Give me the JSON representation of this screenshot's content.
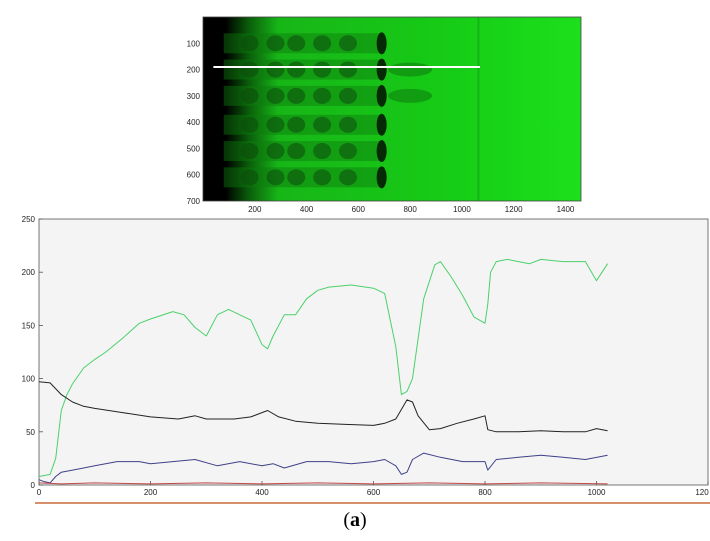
{
  "figure": {
    "caption_open": "(",
    "caption_letter": "a",
    "caption_close": ")"
  },
  "chart_data": [
    {
      "type": "heatmap",
      "description_role": "green gel-lane image with a white horizontal scan line at y ≈ 190",
      "xlim": [
        0,
        1460
      ],
      "ylim": [
        0,
        700
      ],
      "x_ticks": [
        "200",
        "400",
        "600",
        "800",
        "1000",
        "1200",
        "1400"
      ],
      "y_ticks": [
        "100",
        "200",
        "300",
        "400",
        "500",
        "600",
        "700"
      ],
      "scan_line": {
        "y": 190,
        "x_start": 40,
        "x_end": 1070
      },
      "colors": {
        "background": "#19e019",
        "bands": "#0d4d0d",
        "scan_line": "#ffffff"
      }
    },
    {
      "type": "line",
      "xlim": [
        0,
        1200
      ],
      "ylim": [
        0,
        250
      ],
      "x_ticks": [
        "0",
        "200",
        "400",
        "600",
        "800",
        "1000",
        "120"
      ],
      "y_ticks": [
        "0",
        "50",
        "100",
        "150",
        "200",
        "250"
      ],
      "grid": false,
      "series": [
        {
          "color": "#4cd06a",
          "x": [
            0,
            20,
            30,
            40,
            50,
            60,
            80,
            100,
            120,
            150,
            180,
            200,
            240,
            260,
            280,
            300,
            320,
            340,
            360,
            380,
            400,
            410,
            420,
            440,
            460,
            480,
            500,
            520,
            560,
            600,
            620,
            640,
            650,
            660,
            670,
            690,
            710,
            720,
            740,
            760,
            780,
            800,
            805,
            810,
            820,
            840,
            860,
            880,
            900,
            940,
            980,
            1000,
            1020
          ],
          "y": [
            8,
            10,
            25,
            70,
            85,
            95,
            110,
            118,
            125,
            138,
            152,
            156,
            163,
            160,
            148,
            140,
            160,
            165,
            160,
            155,
            132,
            128,
            140,
            160,
            160,
            175,
            183,
            186,
            188,
            185,
            180,
            130,
            85,
            88,
            100,
            175,
            207,
            210,
            195,
            178,
            158,
            152,
            170,
            200,
            210,
            212,
            210,
            208,
            212,
            210,
            210,
            192,
            208
          ]
        },
        {
          "color": "#222222",
          "x": [
            0,
            20,
            40,
            60,
            80,
            100,
            150,
            200,
            250,
            280,
            300,
            350,
            380,
            410,
            430,
            460,
            500,
            550,
            600,
            620,
            640,
            660,
            670,
            680,
            700,
            720,
            750,
            780,
            800,
            805,
            820,
            860,
            900,
            940,
            980,
            1000,
            1020
          ],
          "y": [
            97,
            96,
            85,
            78,
            74,
            72,
            68,
            64,
            62,
            65,
            62,
            62,
            64,
            70,
            64,
            60,
            58,
            57,
            56,
            58,
            62,
            80,
            78,
            65,
            52,
            53,
            58,
            62,
            65,
            52,
            50,
            50,
            51,
            50,
            50,
            53,
            51
          ]
        },
        {
          "color": "#40408a",
          "x": [
            0,
            10,
            20,
            30,
            40,
            60,
            80,
            100,
            140,
            180,
            200,
            240,
            280,
            320,
            360,
            400,
            420,
            440,
            480,
            520,
            560,
            600,
            620,
            640,
            650,
            660,
            670,
            690,
            720,
            760,
            800,
            805,
            820,
            860,
            900,
            940,
            980,
            1020
          ],
          "y": [
            5,
            3,
            2,
            8,
            12,
            14,
            16,
            18,
            22,
            22,
            20,
            22,
            24,
            18,
            22,
            18,
            20,
            16,
            22,
            22,
            20,
            22,
            24,
            18,
            10,
            12,
            24,
            30,
            26,
            22,
            22,
            14,
            24,
            26,
            28,
            26,
            24,
            28
          ]
        },
        {
          "color": "#c04848",
          "x": [
            0,
            40,
            100,
            200,
            300,
            400,
            500,
            600,
            700,
            800,
            900,
            1020
          ],
          "y": [
            2,
            1,
            2,
            1,
            2,
            1,
            2,
            1,
            2,
            1,
            2,
            1
          ]
        }
      ]
    }
  ]
}
